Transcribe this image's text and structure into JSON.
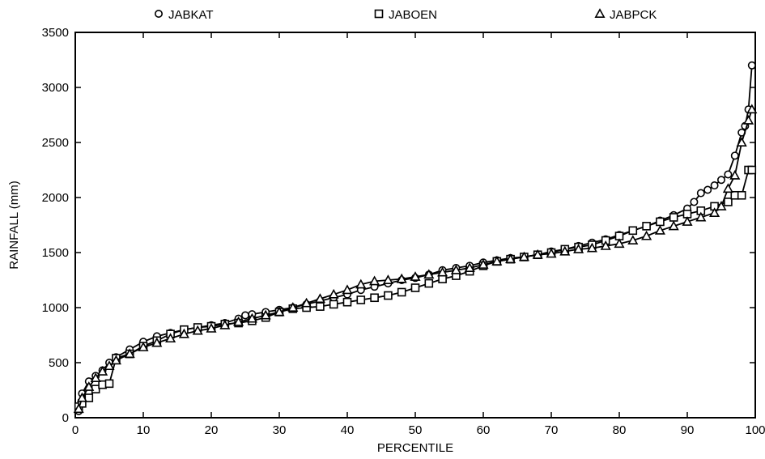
{
  "chart_data": {
    "type": "line",
    "title": "",
    "xlabel": "PERCENTILE",
    "ylabel": "RAINFALL (mm)",
    "xlim": [
      0,
      100
    ],
    "ylim": [
      0,
      3500
    ],
    "xticks": [
      0,
      10,
      20,
      30,
      40,
      50,
      60,
      70,
      80,
      90,
      100
    ],
    "yticks": [
      0,
      500,
      1000,
      1500,
      2000,
      2500,
      3000,
      3500
    ],
    "grid": false,
    "legend_position": "top",
    "series": [
      {
        "name": "JABKAT",
        "marker": "circle",
        "color": "#000000",
        "x": [
          0.5,
          1,
          2,
          3,
          4,
          5,
          6,
          8,
          10,
          12,
          14,
          16,
          18,
          20,
          22,
          24,
          25,
          26,
          28,
          30,
          32,
          34,
          36,
          38,
          40,
          42,
          44,
          46,
          48,
          50,
          52,
          54,
          56,
          58,
          60,
          62,
          64,
          66,
          68,
          70,
          72,
          74,
          76,
          78,
          80,
          82,
          84,
          86,
          88,
          90,
          91,
          92,
          93,
          94,
          95,
          96,
          97,
          98,
          98.5,
          99,
          99.5
        ],
        "y": [
          60,
          220,
          330,
          380,
          430,
          500,
          550,
          620,
          690,
          740,
          770,
          800,
          820,
          840,
          860,
          900,
          930,
          940,
          960,
          980,
          1000,
          1030,
          1060,
          1090,
          1120,
          1160,
          1190,
          1220,
          1250,
          1270,
          1300,
          1340,
          1360,
          1380,
          1410,
          1430,
          1450,
          1460,
          1480,
          1510,
          1530,
          1560,
          1590,
          1620,
          1660,
          1700,
          1740,
          1790,
          1840,
          1900,
          1960,
          2040,
          2070,
          2110,
          2160,
          2210,
          2380,
          2590,
          2650,
          2800,
          3200
        ]
      },
      {
        "name": "JABOEN",
        "marker": "square",
        "color": "#000000",
        "x": [
          0.5,
          1,
          2,
          3,
          4,
          5,
          6,
          8,
          10,
          12,
          14,
          16,
          18,
          20,
          22,
          24,
          26,
          28,
          30,
          32,
          34,
          36,
          38,
          40,
          42,
          44,
          46,
          48,
          50,
          52,
          54,
          56,
          58,
          60,
          62,
          64,
          66,
          68,
          70,
          72,
          74,
          76,
          78,
          80,
          82,
          84,
          86,
          88,
          90,
          92,
          94,
          96,
          97,
          98,
          99,
          99.5
        ],
        "y": [
          100,
          130,
          180,
          260,
          300,
          310,
          540,
          580,
          650,
          700,
          760,
          800,
          820,
          830,
          850,
          860,
          880,
          910,
          960,
          990,
          1000,
          1010,
          1030,
          1050,
          1070,
          1090,
          1110,
          1140,
          1180,
          1220,
          1260,
          1290,
          1330,
          1380,
          1420,
          1440,
          1460,
          1480,
          1500,
          1530,
          1550,
          1570,
          1610,
          1650,
          1700,
          1740,
          1780,
          1820,
          1850,
          1880,
          1920,
          1960,
          2020,
          2020,
          2250,
          2250
        ]
      },
      {
        "name": "JABPCK",
        "marker": "triangle",
        "color": "#000000",
        "x": [
          0.5,
          1,
          2,
          3,
          4,
          5,
          6,
          8,
          10,
          12,
          14,
          16,
          18,
          20,
          22,
          24,
          26,
          28,
          30,
          32,
          34,
          36,
          38,
          40,
          42,
          44,
          46,
          48,
          50,
          52,
          54,
          56,
          58,
          60,
          62,
          64,
          66,
          68,
          70,
          72,
          74,
          76,
          78,
          80,
          82,
          84,
          86,
          88,
          90,
          92,
          94,
          95,
          96,
          97,
          98,
          99,
          99.5
        ],
        "y": [
          80,
          180,
          280,
          360,
          420,
          470,
          520,
          580,
          640,
          680,
          720,
          760,
          790,
          810,
          840,
          870,
          900,
          930,
          960,
          1000,
          1040,
          1080,
          1120,
          1160,
          1210,
          1240,
          1250,
          1260,
          1280,
          1300,
          1320,
          1340,
          1360,
          1390,
          1420,
          1440,
          1460,
          1480,
          1490,
          1510,
          1530,
          1540,
          1560,
          1580,
          1610,
          1650,
          1700,
          1740,
          1780,
          1820,
          1860,
          1920,
          2080,
          2200,
          2500,
          2700,
          2800
        ]
      }
    ]
  }
}
